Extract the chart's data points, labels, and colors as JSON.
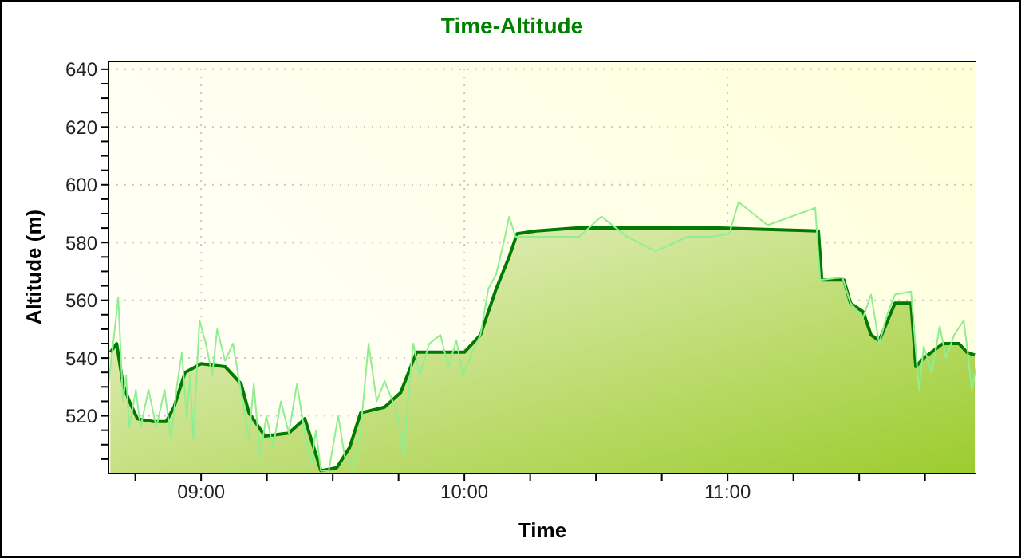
{
  "chart_data": {
    "type": "line",
    "title": "Time-Altitude",
    "xlabel": "Time",
    "ylabel": "Altitude (m)",
    "xlim": [
      8.648,
      11.945
    ],
    "xticks": [
      {
        "value": 8.75,
        "label": null
      },
      {
        "value": 9,
        "label": "09:00"
      },
      {
        "value": 9.25,
        "label": null
      },
      {
        "value": 9.5,
        "label": null
      },
      {
        "value": 9.75,
        "label": null
      },
      {
        "value": 10,
        "label": "10:00"
      },
      {
        "value": 10.25,
        "label": null
      },
      {
        "value": 10.5,
        "label": null
      },
      {
        "value": 10.75,
        "label": null
      },
      {
        "value": 11,
        "label": "11:00"
      },
      {
        "value": 11.25,
        "label": null
      },
      {
        "value": 11.5,
        "label": null
      },
      {
        "value": 11.75,
        "label": null
      }
    ],
    "ylim": [
      500,
      643
    ],
    "yticks": [
      {
        "value": 505,
        "label": null
      },
      {
        "value": 510,
        "label": null
      },
      {
        "value": 515,
        "label": null
      },
      520,
      {
        "value": 525,
        "label": null
      },
      {
        "value": 530,
        "label": null
      },
      {
        "value": 535,
        "label": null
      },
      540,
      {
        "value": 545,
        "label": null
      },
      {
        "value": 550,
        "label": null
      },
      {
        "value": 555,
        "label": null
      },
      560,
      {
        "value": 565,
        "label": null
      },
      {
        "value": 570,
        "label": null
      },
      {
        "value": 575,
        "label": null
      },
      580,
      {
        "value": 585,
        "label": null
      },
      {
        "value": 590,
        "label": null
      },
      {
        "value": 595,
        "label": null
      },
      600,
      {
        "value": 605,
        "label": null
      },
      {
        "value": 610,
        "label": null
      },
      {
        "value": 615,
        "label": null
      },
      620,
      {
        "value": 625,
        "label": null
      },
      {
        "value": 630,
        "label": null
      },
      {
        "value": 635,
        "label": null
      },
      640
    ],
    "grid": true,
    "series": [
      {
        "type": "area",
        "color": "#007a00",
        "x": [
          8.655,
          8.679,
          8.703,
          8.727,
          8.758,
          8.818,
          8.867,
          8.897,
          8.939,
          9.0,
          9.091,
          9.152,
          9.182,
          9.242,
          9.333,
          9.394,
          9.455,
          9.515,
          9.564,
          9.606,
          9.697,
          9.758,
          9.818,
          9.909,
          10.0,
          10.061,
          10.121,
          10.17,
          10.2,
          10.273,
          10.424,
          10.667,
          10.97,
          11.345,
          11.358,
          11.442,
          11.467,
          11.515,
          11.545,
          11.576,
          11.636,
          11.697,
          11.715,
          11.745,
          11.818,
          11.879,
          11.909,
          11.939
        ],
        "values": [
          542,
          545,
          531,
          525,
          519,
          518,
          518,
          523,
          535,
          538,
          537,
          531,
          521,
          513,
          514,
          519,
          501,
          502,
          509,
          521,
          523,
          528,
          542,
          542,
          542,
          548,
          564,
          575,
          583,
          584,
          585,
          585,
          585,
          584,
          567,
          567,
          559,
          556,
          548,
          546,
          559,
          559,
          537,
          540,
          545,
          545,
          542,
          541
        ]
      },
      {
        "type": "line",
        "color": "#90ee90",
        "x": [
          8.648,
          8.667,
          8.685,
          8.703,
          8.715,
          8.727,
          8.752,
          8.77,
          8.8,
          8.83,
          8.861,
          8.885,
          8.909,
          8.927,
          8.945,
          8.958,
          8.97,
          8.994,
          9.018,
          9.042,
          9.061,
          9.091,
          9.121,
          9.152,
          9.182,
          9.2,
          9.224,
          9.248,
          9.273,
          9.303,
          9.333,
          9.364,
          9.394,
          9.418,
          9.436,
          9.455,
          9.485,
          9.521,
          9.545,
          9.576,
          9.606,
          9.636,
          9.667,
          9.697,
          9.745,
          9.77,
          9.788,
          9.806,
          9.83,
          9.867,
          9.909,
          9.939,
          9.97,
          9.994,
          10.03,
          10.061,
          10.091,
          10.121,
          10.152,
          10.17,
          10.194,
          10.273,
          10.436,
          10.521,
          10.618,
          10.727,
          10.848,
          10.939,
          11.006,
          11.042,
          11.152,
          11.333,
          11.352,
          11.436,
          11.467,
          11.515,
          11.545,
          11.576,
          11.606,
          11.636,
          11.697,
          11.727,
          11.745,
          11.776,
          11.806,
          11.83,
          11.861,
          11.897,
          11.915,
          11.927,
          11.945
        ],
        "values": [
          531,
          546,
          561,
          525,
          534,
          516,
          529,
          516,
          529,
          516,
          529,
          512,
          531,
          542,
          519,
          534,
          512,
          553,
          545,
          534,
          550,
          539,
          545,
          528,
          512,
          531,
          506,
          520,
          509,
          525,
          514,
          531,
          514,
          503,
          515,
          501,
          501,
          520,
          506,
          501,
          515,
          545,
          525,
          532,
          521,
          506,
          528,
          545,
          534,
          545,
          548,
          537,
          546,
          534,
          542,
          548,
          564,
          569,
          581,
          589,
          582,
          582,
          582,
          589,
          582,
          577,
          582,
          582,
          583,
          594,
          586,
          592,
          567,
          568,
          559,
          554,
          562,
          545,
          555,
          562,
          563,
          529,
          544,
          535,
          551,
          540,
          548,
          553,
          540,
          529,
          537
        ]
      }
    ]
  }
}
